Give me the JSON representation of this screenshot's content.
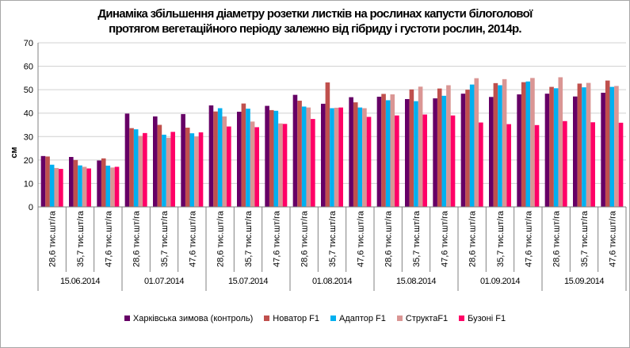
{
  "chart_data": {
    "type": "bar",
    "title": "Динаміка збільшення діаметру розетки листків на рослинах капусти білоголової протягом вегетаційного періоду залежно від гібриду і густоти рослин, 2014р.",
    "title_lines": [
      "Динаміка збільшення діаметру розетки листків на рослинах капусти білоголової",
      "протягом вегетаційного періоду залежно від гібриду і густоти рослин, 2014р."
    ],
    "xlabel": "",
    "ylabel": "см",
    "ylim": [
      0,
      70
    ],
    "yticks": [
      0,
      10,
      20,
      30,
      40,
      50,
      60,
      70
    ],
    "grid": true,
    "legend_position": "bottom",
    "groups": [
      "15.06.2014",
      "01.07.2014",
      "15.07.2014",
      "01.08.2014",
      "15.08.2014",
      "01.09.2014",
      "15.09.2014"
    ],
    "densities": [
      "28,6 тис.шт/га",
      "35,7 тис.шт/га",
      "47,6 тис.шт/га"
    ],
    "series": [
      {
        "name": "Харківська зимова (контроль)",
        "color": "#660066",
        "values": [
          21.7,
          21.3,
          19.8,
          39.8,
          38.6,
          39.6,
          43.3,
          40.6,
          43.1,
          47.8,
          44.0,
          46.8,
          47.0,
          46.0,
          46.3,
          48.3,
          46.9,
          48.0,
          48.3,
          47.1,
          48.7
        ]
      },
      {
        "name": "Новатор F1",
        "color": "#c0504d",
        "values": [
          21.5,
          20.0,
          20.7,
          33.6,
          35.0,
          33.8,
          40.7,
          44.1,
          41.3,
          45.3,
          53.1,
          44.6,
          48.2,
          50.1,
          50.5,
          50.0,
          52.8,
          53.2,
          51.2,
          52.6,
          53.9
        ]
      },
      {
        "name": "Адаптор F1",
        "color": "#00b0f0",
        "values": [
          18.0,
          17.7,
          17.6,
          33.1,
          30.8,
          31.4,
          42.1,
          41.9,
          41.0,
          42.8,
          42.1,
          42.4,
          45.5,
          45.1,
          47.4,
          52.2,
          51.9,
          53.5,
          50.6,
          51.0,
          51.2
        ]
      },
      {
        "name": "СтруктаF1",
        "color": "#da9694",
        "values": [
          16.6,
          17.1,
          16.8,
          30.3,
          29.5,
          30.0,
          38.6,
          36.4,
          35.6,
          42.4,
          42.3,
          42.1,
          48.0,
          51.3,
          51.9,
          54.9,
          54.5,
          55.0,
          55.3,
          52.9,
          51.6
        ]
      },
      {
        "name": "Бузоні F1",
        "color": "#ff0066",
        "values": [
          16.2,
          16.4,
          17.1,
          31.5,
          32.0,
          31.8,
          34.3,
          34.0,
          35.4,
          37.5,
          42.4,
          38.4,
          39.0,
          39.4,
          39.0,
          36.0,
          35.3,
          34.9,
          36.6,
          36.1,
          35.9
        ]
      }
    ]
  }
}
